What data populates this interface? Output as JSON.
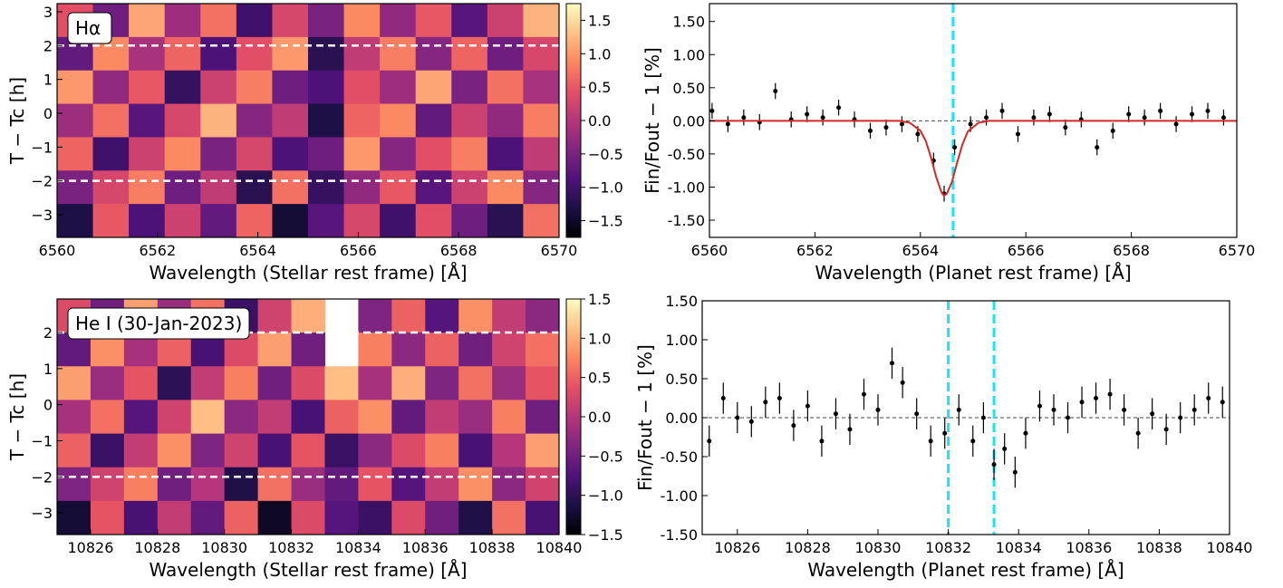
{
  "chart_data": [
    {
      "type": "heatmap",
      "annotation": "Hα",
      "x_label": "Wavelength (Stellar rest frame) [Å]",
      "y_label": "T − Tc [h]",
      "xlim": [
        6560,
        6570
      ],
      "ylim": [
        -3.67,
        3.24
      ],
      "xticks": [
        6560,
        6562,
        6564,
        6566,
        6568,
        6570
      ],
      "yticks": [
        3,
        2,
        1,
        0,
        {
          "value": -1,
          "label": "−1"
        },
        {
          "value": -2,
          "label": "−2"
        },
        {
          "value": -3,
          "label": "−3"
        }
      ],
      "colormap": "magma",
      "clim": [
        -1.75,
        1.75
      ],
      "cticks": [
        1.5,
        {
          "value": 1,
          "label": "1.0"
        },
        0.5,
        {
          "value": 0,
          "label": "0.0"
        },
        {
          "value": -0.5,
          "label": "−0.5"
        },
        {
          "value": -1,
          "label": "−1.0"
        },
        {
          "value": -1.5,
          "label": "−1.5"
        }
      ],
      "hlines": [
        2,
        -2
      ],
      "z": [
        [
          0.4,
          -0.6,
          1.1,
          -0.2,
          0.7,
          -1.0,
          0.3,
          -0.5,
          0.9,
          -0.3,
          0.5,
          -0.8,
          0.2,
          1.2
        ],
        [
          -0.7,
          0.9,
          -0.1,
          0.6,
          -0.9,
          0.4,
          1.0,
          -1.2,
          0.1,
          0.8,
          -0.4,
          0.6,
          -0.6,
          0.3
        ],
        [
          1.0,
          -0.3,
          0.5,
          -1.1,
          0.2,
          0.8,
          -0.6,
          -0.9,
          0.4,
          -0.2,
          1.1,
          -0.5,
          0.7,
          -0.1
        ],
        [
          -0.2,
          0.7,
          -0.8,
          0.3,
          1.2,
          -0.4,
          0.1,
          -1.3,
          0.6,
          0.9,
          -0.7,
          0.2,
          -0.3,
          0.8
        ],
        [
          0.6,
          -1.0,
          0.2,
          0.9,
          -0.5,
          0.3,
          -0.9,
          -0.6,
          1.0,
          -0.4,
          0.4,
          0.8,
          -0.9,
          0.1
        ],
        [
          -0.5,
          0.3,
          0.8,
          -0.6,
          0.1,
          -1.2,
          0.7,
          -1.1,
          -0.3,
          0.5,
          -0.8,
          0.2,
          0.9,
          -0.4
        ],
        [
          -1.3,
          0.5,
          -0.9,
          0.2,
          -0.7,
          0.6,
          -1.4,
          -0.8,
          0.3,
          -1.0,
          0.4,
          -0.6,
          -1.2,
          0.7
        ]
      ]
    },
    {
      "type": "errorbar",
      "x_label": "Wavelength (Planet rest frame) [Å]",
      "y_label": "Fin/Fout − 1 [%]",
      "xlim": [
        6560,
        6570
      ],
      "ylim": [
        -1.76,
        1.77
      ],
      "xticks": [
        6560,
        6562,
        6564,
        6566,
        6568,
        6570
      ],
      "yticks": [
        {
          "value": 1.5,
          "label": "1.50"
        },
        {
          "value": 1,
          "label": "1.00"
        },
        {
          "value": 0.5,
          "label": "0.50"
        },
        {
          "value": 0,
          "label": "0.00"
        },
        {
          "value": -0.5,
          "label": "-0.50"
        },
        {
          "value": -1,
          "label": "-1.00"
        },
        {
          "value": -1.5,
          "label": "-1.50"
        }
      ],
      "reference_line": 0,
      "vlines": [
        6564.62
      ],
      "x": [
        6560.05,
        6560.35,
        6560.65,
        6560.95,
        6561.25,
        6561.55,
        6561.85,
        6562.15,
        6562.45,
        6562.75,
        6563.05,
        6563.35,
        6563.65,
        6563.95,
        6564.25,
        6564.45,
        6564.65,
        6564.95,
        6565.25,
        6565.55,
        6565.85,
        6566.15,
        6566.45,
        6566.75,
        6567.05,
        6567.35,
        6567.65,
        6567.95,
        6568.25,
        6568.55,
        6568.85,
        6569.15,
        6569.45,
        6569.75
      ],
      "values": [
        0.15,
        -0.05,
        0.05,
        -0.02,
        0.45,
        0.02,
        0.1,
        0.05,
        0.2,
        0.02,
        -0.15,
        -0.1,
        -0.05,
        -0.2,
        -0.6,
        -1.1,
        -0.4,
        -0.05,
        0.05,
        0.15,
        -0.2,
        0.05,
        0.1,
        -0.1,
        0.02,
        -0.4,
        -0.15,
        0.1,
        0.05,
        0.15,
        -0.05,
        0.1,
        0.15,
        0.05
      ],
      "errors": [
        0.12,
        0.12,
        0.12,
        0.12,
        0.12,
        0.12,
        0.12,
        0.12,
        0.12,
        0.12,
        0.12,
        0.12,
        0.12,
        0.12,
        0.12,
        0.12,
        0.12,
        0.12,
        0.12,
        0.12,
        0.12,
        0.12,
        0.12,
        0.12,
        0.12,
        0.12,
        0.12,
        0.12,
        0.12,
        0.12,
        0.12,
        0.12,
        0.12,
        0.12
      ],
      "model": {
        "color": "#d62728",
        "x": [
          6560,
          6563.6,
          6563.8,
          6564.0,
          6564.1,
          6564.2,
          6564.3,
          6564.4,
          6564.45,
          6564.5,
          6564.6,
          6564.7,
          6564.8,
          6564.9,
          6565.1,
          6565.3,
          6570
        ],
        "values": [
          0,
          0,
          -0.03,
          -0.15,
          -0.3,
          -0.55,
          -0.85,
          -1.08,
          -1.13,
          -1.1,
          -0.92,
          -0.62,
          -0.35,
          -0.16,
          -0.03,
          0,
          0
        ]
      }
    },
    {
      "type": "heatmap",
      "annotation": "He I (30-Jan-2023)",
      "x_label": "Wavelength (Stellar rest frame) [Å]",
      "y_label": "T − Tc [h]",
      "xlim": [
        10825,
        10840
      ],
      "ylim": [
        -3.6,
        2.93
      ],
      "xticks": [
        10826,
        10828,
        10830,
        10832,
        10834,
        10836,
        10838,
        10840
      ],
      "yticks": [
        2,
        1,
        0,
        {
          "value": -1,
          "label": "−1"
        },
        {
          "value": -2,
          "label": "−2"
        },
        {
          "value": -3,
          "label": "−3"
        }
      ],
      "colormap": "magma",
      "clim": [
        -1.5,
        1.5
      ],
      "cticks": [
        1.5,
        {
          "value": 1,
          "label": "1.0"
        },
        0.5,
        {
          "value": 0,
          "label": "0.0"
        },
        {
          "value": -0.5,
          "label": "−0.5"
        },
        {
          "value": -1,
          "label": "−1.0"
        },
        {
          "value": -1.5,
          "label": "−1.5"
        }
      ],
      "hlines": [
        2,
        -2
      ],
      "z": [
        [
          0.3,
          -0.5,
          0.9,
          -0.2,
          0.6,
          -0.9,
          0.2,
          1.0,
          null,
          -0.4,
          0.5,
          -0.7,
          0.8,
          0.1,
          -0.3
        ],
        [
          -0.6,
          0.8,
          -0.1,
          0.5,
          -0.8,
          0.3,
          0.9,
          -0.5,
          null,
          0.7,
          -0.3,
          0.5,
          -0.5,
          0.2,
          0.6
        ],
        [
          0.9,
          -0.2,
          0.4,
          -1.0,
          0.1,
          0.7,
          -0.5,
          0.3,
          1.1,
          -0.1,
          1.0,
          -0.4,
          0.6,
          -0.2,
          0.4
        ],
        [
          -0.1,
          0.6,
          -0.7,
          0.2,
          1.1,
          -0.3,
          0.1,
          -0.8,
          0.5,
          0.8,
          -0.6,
          0.1,
          -0.2,
          0.7,
          -0.5
        ],
        [
          0.5,
          -0.9,
          0.1,
          0.8,
          -0.4,
          0.2,
          -0.8,
          0.4,
          -0.9,
          -0.3,
          0.3,
          0.7,
          -0.8,
          0.0,
          0.9
        ],
        [
          -0.4,
          0.2,
          0.7,
          -0.5,
          0.0,
          -1.1,
          0.6,
          -0.2,
          -0.6,
          0.4,
          -0.7,
          0.1,
          0.8,
          -0.3,
          0.2
        ],
        [
          -1.2,
          0.4,
          -0.8,
          0.1,
          -0.6,
          0.5,
          -1.3,
          0.3,
          -0.7,
          -0.9,
          0.3,
          -0.5,
          -1.1,
          0.6,
          -0.8
        ]
      ]
    },
    {
      "type": "errorbar",
      "x_label": "Wavelength (Planet rest frame) [Å]",
      "y_label": "Fin/Fout − 1 [%]",
      "xlim": [
        10825,
        10840
      ],
      "ylim": [
        -1.5,
        1.5
      ],
      "xticks": [
        10826,
        10828,
        10830,
        10832,
        10834,
        10836,
        10838,
        10840
      ],
      "yticks": [
        {
          "value": 1.5,
          "label": "1.50"
        },
        {
          "value": 1,
          "label": "1.00"
        },
        {
          "value": 0.5,
          "label": "0.50"
        },
        {
          "value": 0,
          "label": "0.00"
        },
        {
          "value": -0.5,
          "label": "-0.50"
        },
        {
          "value": -1,
          "label": "-1.00"
        },
        {
          "value": -1.5,
          "label": "-1.50"
        }
      ],
      "reference_line": 0,
      "vlines": [
        10832,
        10833.3
      ],
      "x": [
        10825.2,
        10825.6,
        10826.0,
        10826.4,
        10826.8,
        10827.2,
        10827.6,
        10828.0,
        10828.4,
        10828.8,
        10829.2,
        10829.6,
        10830.0,
        10830.4,
        10830.7,
        10831.1,
        10831.5,
        10831.9,
        10832.3,
        10832.7,
        10833.0,
        10833.3,
        10833.6,
        10833.9,
        10834.2,
        10834.6,
        10835.0,
        10835.4,
        10835.8,
        10836.2,
        10836.6,
        10837.0,
        10837.4,
        10837.8,
        10838.2,
        10838.6,
        10839.0,
        10839.4,
        10839.8
      ],
      "values": [
        -0.3,
        0.25,
        0.0,
        -0.05,
        0.2,
        0.25,
        -0.1,
        0.15,
        -0.3,
        0.05,
        -0.15,
        0.3,
        0.1,
        0.7,
        0.45,
        0.05,
        -0.3,
        -0.2,
        0.1,
        -0.3,
        0.0,
        -0.6,
        -0.4,
        -0.7,
        -0.2,
        0.15,
        0.1,
        0.0,
        0.2,
        0.25,
        0.3,
        0.1,
        -0.2,
        0.05,
        -0.15,
        0.0,
        0.1,
        0.25,
        0.2
      ],
      "errors": [
        0.2,
        0.2,
        0.2,
        0.2,
        0.2,
        0.2,
        0.2,
        0.2,
        0.2,
        0.2,
        0.2,
        0.2,
        0.2,
        0.2,
        0.2,
        0.2,
        0.2,
        0.2,
        0.2,
        0.2,
        0.2,
        0.2,
        0.2,
        0.2,
        0.2,
        0.2,
        0.2,
        0.2,
        0.2,
        0.2,
        0.2,
        0.2,
        0.2,
        0.2,
        0.2,
        0.2,
        0.2,
        0.2,
        0.2
      ]
    }
  ]
}
